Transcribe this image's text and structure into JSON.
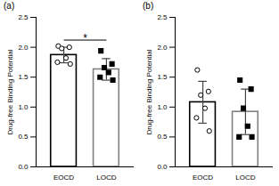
{
  "chart_data": [
    {
      "type": "bar",
      "title": "(a)",
      "categories": [
        "EOCD",
        "LOCD"
      ],
      "values": [
        1.87,
        1.63
      ],
      "errors": [
        0.13,
        0.18
      ],
      "points": [
        [
          2.02,
          2.0,
          1.98,
          1.82,
          1.75,
          1.72
        ],
        [
          1.94,
          1.72,
          1.66,
          1.58,
          1.5,
          1.45
        ]
      ],
      "colors": [
        "#000000",
        "#808080"
      ],
      "ylabel": "Drug-free Binding Potential",
      "ylim": [
        0,
        2.5
      ],
      "yticks": [
        {
          "value": 0,
          "label": "0.0"
        },
        {
          "value": 0.5,
          "label": "0.5"
        },
        {
          "value": 1,
          "label": "1.0"
        },
        {
          "value": 1.5,
          "label": "1.5"
        },
        {
          "value": 2,
          "label": "2.0"
        },
        {
          "value": 2.5,
          "label": "2.5"
        }
      ],
      "annotations": [
        {
          "text": "*",
          "x": [
            "EOCD",
            "LOCD"
          ],
          "y": 2.12
        }
      ]
    },
    {
      "type": "bar",
      "title": "(b)",
      "categories": [
        "EOCD",
        "LOCD"
      ],
      "values": [
        1.08,
        0.92
      ],
      "errors": [
        0.35,
        0.38
      ],
      "points": [
        [
          1.62,
          1.26,
          1.2,
          0.98,
          0.82,
          0.6
        ],
        [
          1.45,
          1.3,
          0.98,
          0.68,
          0.5,
          0.5
        ]
      ],
      "colors": [
        "#000000",
        "#808080"
      ],
      "ylabel": "Drug-free Binding Potential",
      "ylim": [
        0,
        2.5
      ],
      "yticks": [
        {
          "value": 0,
          "label": "0.0"
        },
        {
          "value": 0.5,
          "label": "0.5"
        },
        {
          "value": 1,
          "label": "1.0"
        },
        {
          "value": 1.5,
          "label": "1.5"
        },
        {
          "value": 2,
          "label": "2.0"
        },
        {
          "value": 2.5,
          "label": "2.5"
        }
      ]
    }
  ]
}
